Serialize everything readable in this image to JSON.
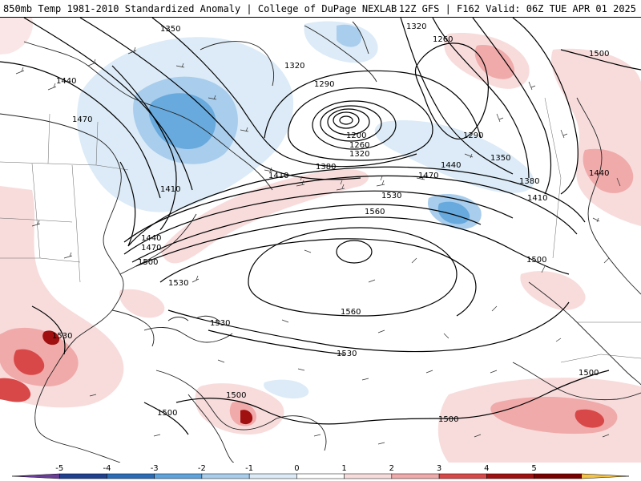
{
  "header": {
    "title_left": "850mb Temp 1981-2010 Standardized Anomaly | College of DuPage NEXLAB",
    "title_right": "12Z GFS | F162 Valid: 06Z TUE APR 01 2025"
  },
  "colorbar": {
    "ticks": [
      "-5",
      "-4",
      "-3",
      "-2",
      "-1",
      "0",
      "1",
      "2",
      "3",
      "4",
      "5"
    ],
    "colors": [
      "#6a3d9a",
      "#1f3f8f",
      "#2b6cb8",
      "#5da3dc",
      "#a9cdec",
      "#dcebf7",
      "#ffffff",
      "#f8dcdc",
      "#f0aaaa",
      "#d94848",
      "#a01010",
      "#7a0000",
      "#f5c242"
    ]
  },
  "contour_labels": [
    "1350",
    "1320",
    "1260",
    "1500",
    "1440",
    "1320",
    "1290",
    "1470",
    "1200",
    "1260",
    "1290",
    "1320",
    "1350",
    "1380",
    "1410",
    "1380",
    "1440",
    "1410",
    "1470",
    "1440",
    "1410",
    "1530",
    "1440",
    "1470",
    "1500",
    "1560",
    "1500",
    "1530",
    "1560",
    "1530",
    "1530",
    "1530",
    "1500",
    "1500",
    "1500",
    "1500"
  ]
}
